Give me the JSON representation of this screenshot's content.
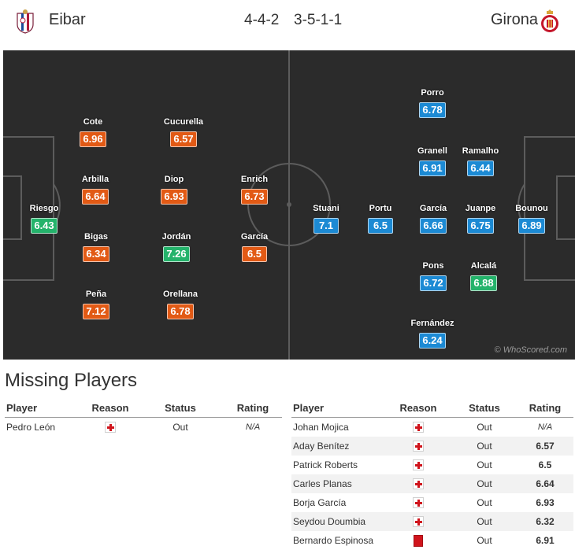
{
  "header": {
    "home_team": "Eibar",
    "away_team": "Girona",
    "home_formation": "4-4-2",
    "away_formation": "3-5-1-1"
  },
  "pitch": {
    "watermark": "© WhoScored.com",
    "home_players": [
      {
        "name": "Riesgo",
        "rating": "6.43",
        "color": "green"
      },
      {
        "name": "Cote",
        "rating": "6.96",
        "color": "orange"
      },
      {
        "name": "Arbilla",
        "rating": "6.64",
        "color": "orange"
      },
      {
        "name": "Bigas",
        "rating": "6.34",
        "color": "orange"
      },
      {
        "name": "Peña",
        "rating": "7.12",
        "color": "orange"
      },
      {
        "name": "Cucurella",
        "rating": "6.57",
        "color": "orange"
      },
      {
        "name": "Diop",
        "rating": "6.93",
        "color": "orange"
      },
      {
        "name": "Jordán",
        "rating": "7.26",
        "color": "green"
      },
      {
        "name": "Orellana",
        "rating": "6.78",
        "color": "orange"
      },
      {
        "name": "Enrich",
        "rating": "6.73",
        "color": "orange"
      },
      {
        "name": "García",
        "rating": "6.5",
        "color": "orange"
      }
    ],
    "away_players": [
      {
        "name": "Porro",
        "rating": "6.78",
        "color": "blue"
      },
      {
        "name": "Granell",
        "rating": "6.91",
        "color": "blue"
      },
      {
        "name": "Ramalho",
        "rating": "6.44",
        "color": "blue"
      },
      {
        "name": "Stuani",
        "rating": "7.1",
        "color": "blue"
      },
      {
        "name": "Portu",
        "rating": "6.5",
        "color": "blue"
      },
      {
        "name": "García",
        "rating": "6.66",
        "color": "blue"
      },
      {
        "name": "Juanpe",
        "rating": "6.75",
        "color": "blue"
      },
      {
        "name": "Bounou",
        "rating": "6.89",
        "color": "blue"
      },
      {
        "name": "Pons",
        "rating": "6.72",
        "color": "blue"
      },
      {
        "name": "Alcalá",
        "rating": "6.88",
        "color": "green"
      },
      {
        "name": "Fernández",
        "rating": "6.24",
        "color": "blue"
      }
    ]
  },
  "missing": {
    "title": "Missing Players",
    "columns": {
      "player": "Player",
      "reason": "Reason",
      "status": "Status",
      "rating": "Rating"
    },
    "home": [
      {
        "player": "Pedro León",
        "reason": "injury-icon",
        "status": "Out",
        "rating": "N/A"
      }
    ],
    "away": [
      {
        "player": "Johan Mojica",
        "reason": "injury-icon",
        "status": "Out",
        "rating": "N/A"
      },
      {
        "player": "Aday Benítez",
        "reason": "injury-icon",
        "status": "Out",
        "rating": "6.57"
      },
      {
        "player": "Patrick Roberts",
        "reason": "injury-icon",
        "status": "Out",
        "rating": "6.5"
      },
      {
        "player": "Carles Planas",
        "reason": "injury-icon",
        "status": "Out",
        "rating": "6.64"
      },
      {
        "player": "Borja García",
        "reason": "injury-icon",
        "status": "Out",
        "rating": "6.93"
      },
      {
        "player": "Seydou Doumbia",
        "reason": "injury-icon",
        "status": "Out",
        "rating": "6.32"
      },
      {
        "player": "Bernardo Espinosa",
        "reason": "red-card-icon",
        "status": "Out",
        "rating": "6.91"
      }
    ]
  },
  "colors": {
    "rating_orange": "#e25a15",
    "rating_blue": "#1c8ad4",
    "rating_green": "#24b36b",
    "pitch": "#2b2b2b"
  }
}
